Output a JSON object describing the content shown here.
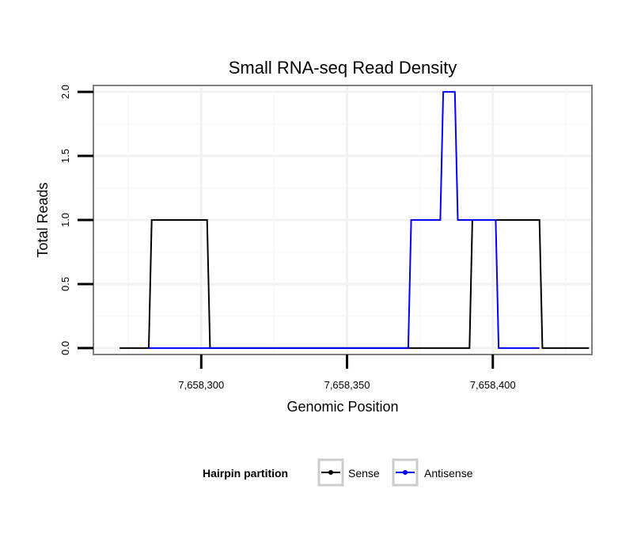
{
  "chart_data": {
    "type": "line",
    "title": "Small RNA-seq Read Density",
    "xlabel": "Genomic Position",
    "ylabel": "Total Reads",
    "xlim": [
      7658263,
      7658434
    ],
    "ylim": [
      -0.05,
      2.05
    ],
    "x_ticks": [
      {
        "value": 7658300,
        "label": "7,658,300"
      },
      {
        "value": 7658350,
        "label": "7,658,350"
      },
      {
        "value": 7658400,
        "label": "7,658,400"
      }
    ],
    "y_ticks": [
      {
        "value": 0,
        "label": "0.0"
      },
      {
        "value": 0.5,
        "label": "0.5"
      },
      {
        "value": 1,
        "label": "1.0"
      },
      {
        "value": 1.5,
        "label": "1.5"
      },
      {
        "value": 2,
        "label": "2.0"
      }
    ],
    "legend": {
      "title": "Hairpin partition",
      "position": "bottom"
    },
    "series": [
      {
        "name": "Sense",
        "color": "#000000",
        "x": [
          7658272,
          7658282,
          7658283,
          7658302,
          7658303,
          7658392,
          7658393,
          7658416,
          7658417,
          7658433
        ],
        "values": [
          0,
          0,
          1,
          1,
          0,
          0,
          1,
          1,
          0,
          0
        ]
      },
      {
        "name": "Antisense",
        "color": "#0000ff",
        "x": [
          7658282,
          7658371,
          7658372,
          7658382,
          7658383,
          7658387,
          7658388,
          7658401,
          7658402,
          7658416
        ],
        "values": [
          0,
          0,
          1,
          1,
          2,
          2,
          1,
          1,
          0,
          0
        ]
      }
    ]
  }
}
